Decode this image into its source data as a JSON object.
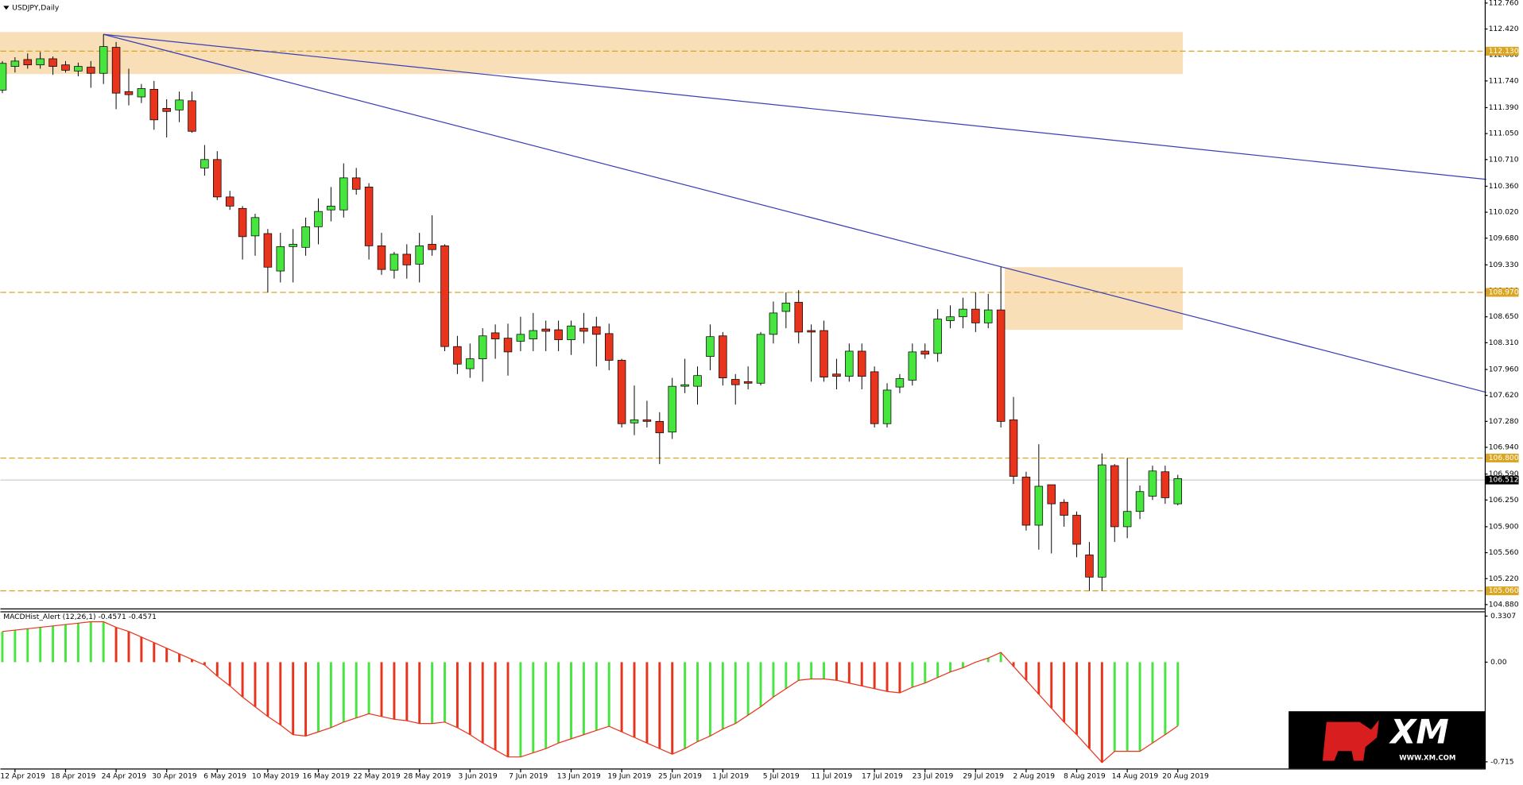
{
  "chart_data": {
    "type": "candlestick",
    "title": "USDJPY,Daily",
    "categories": [
      null,
      "12 Apr 2019",
      null,
      null,
      null,
      "18 Apr 2019",
      null,
      null,
      null,
      "24 Apr 2019",
      null,
      null,
      null,
      "30 Apr 2019",
      null,
      null,
      null,
      "6 May 2019",
      null,
      null,
      null,
      "10 May 2019",
      null,
      null,
      null,
      "16 May 2019",
      null,
      null,
      null,
      "22 May 2019",
      null,
      null,
      null,
      "28 May 2019",
      null,
      null,
      null,
      "3 Jun 2019",
      null,
      null,
      null,
      "7 Jun 2019",
      null,
      null,
      null,
      "13 Jun 2019",
      null,
      null,
      null,
      "19 Jun 2019",
      null,
      null,
      null,
      "25 Jun 2019",
      null,
      null,
      null,
      "1 Jul 2019",
      null,
      null,
      null,
      "5 Jul 2019",
      null,
      null,
      null,
      "11 Jul 2019",
      null,
      null,
      null,
      "17 Jul 2019",
      null,
      null,
      null,
      "23 Jul 2019",
      null,
      null,
      null,
      "29 Jul 2019",
      null,
      null,
      null,
      "2 Aug 2019",
      null,
      null,
      null,
      "8 Aug 2019",
      null,
      null,
      null,
      "14 Aug 2019",
      null,
      null,
      null,
      "20 Aug 2019"
    ],
    "open": [
      111.62,
      111.93,
      112.02,
      111.95,
      112.03,
      111.95,
      111.87,
      111.92,
      111.84,
      112.18,
      111.6,
      111.53,
      111.63,
      111.38,
      111.36,
      111.48,
      110.6,
      110.71,
      110.22,
      110.07,
      109.71,
      109.74,
      109.25,
      109.57,
      109.56,
      109.83,
      110.05,
      110.05,
      110.47,
      110.35,
      109.58,
      109.26,
      109.47,
      109.34,
      109.6,
      109.58,
      108.26,
      107.97,
      108.1,
      108.44,
      108.37,
      108.33,
      108.36,
      108.49,
      108.48,
      108.35,
      108.5,
      108.52,
      108.43,
      108.08,
      107.26,
      107.3,
      107.28,
      107.14,
      107.74,
      107.74,
      108.13,
      108.4,
      107.83,
      107.8,
      107.78,
      108.42,
      108.72,
      108.84,
      108.47,
      108.47,
      107.9,
      107.87,
      108.2,
      107.93,
      107.25,
      107.73,
      107.82,
      108.2,
      108.17,
      108.6,
      108.65,
      108.75,
      108.57,
      108.74,
      107.3,
      106.55,
      105.92,
      106.45,
      106.22,
      106.05,
      105.53,
      105.24,
      106.7,
      105.9,
      106.1,
      106.3,
      106.62,
      106.2
    ],
    "high": [
      112.0,
      112.05,
      112.1,
      112.12,
      112.06,
      112.0,
      111.98,
      112.0,
      112.35,
      112.25,
      111.9,
      111.7,
      111.74,
      111.5,
      111.6,
      111.6,
      110.9,
      110.82,
      110.3,
      110.1,
      110.0,
      109.8,
      109.75,
      109.8,
      109.95,
      110.2,
      110.35,
      110.66,
      110.6,
      110.4,
      109.75,
      109.5,
      109.6,
      109.75,
      109.98,
      109.6,
      108.4,
      108.3,
      108.5,
      108.55,
      108.56,
      108.65,
      108.7,
      108.6,
      108.6,
      108.6,
      108.7,
      108.65,
      108.56,
      108.1,
      107.75,
      107.55,
      107.4,
      107.85,
      108.1,
      108.0,
      108.55,
      108.45,
      107.9,
      108.0,
      108.45,
      108.85,
      108.97,
      109.0,
      108.55,
      108.6,
      108.1,
      108.3,
      108.3,
      108.0,
      107.78,
      107.9,
      108.3,
      108.3,
      108.75,
      108.8,
      108.9,
      108.97,
      108.95,
      109.3,
      107.6,
      106.62,
      106.98,
      106.45,
      106.26,
      106.1,
      105.7,
      106.86,
      106.72,
      106.8,
      106.44,
      106.7,
      106.7,
      106.58
    ],
    "low": [
      111.58,
      111.85,
      111.9,
      111.9,
      111.82,
      111.85,
      111.8,
      111.65,
      111.7,
      111.37,
      111.42,
      111.45,
      111.1,
      111.0,
      111.2,
      111.06,
      110.5,
      110.18,
      110.05,
      109.4,
      109.45,
      108.97,
      109.1,
      109.1,
      109.45,
      109.6,
      109.9,
      109.95,
      110.25,
      109.4,
      109.2,
      109.15,
      109.15,
      109.1,
      109.45,
      108.2,
      107.9,
      107.85,
      107.8,
      108.1,
      107.88,
      108.2,
      108.2,
      108.2,
      108.2,
      108.15,
      108.3,
      108.0,
      107.95,
      107.2,
      107.1,
      107.2,
      106.72,
      107.05,
      107.65,
      107.5,
      107.95,
      107.75,
      107.5,
      107.7,
      107.75,
      108.3,
      108.5,
      108.3,
      107.8,
      107.8,
      107.7,
      107.8,
      107.7,
      107.2,
      107.2,
      107.65,
      107.75,
      108.1,
      108.06,
      108.5,
      108.5,
      108.45,
      108.5,
      107.2,
      106.46,
      105.85,
      105.6,
      105.55,
      105.9,
      105.5,
      105.06,
      105.06,
      105.7,
      105.75,
      106.0,
      106.25,
      106.2,
      106.18
    ],
    "close": [
      111.97,
      112.0,
      111.95,
      112.03,
      111.93,
      111.88,
      111.93,
      111.84,
      112.19,
      111.58,
      111.56,
      111.64,
      111.23,
      111.34,
      111.49,
      111.08,
      110.71,
      110.22,
      110.1,
      109.7,
      109.95,
      109.3,
      109.57,
      109.6,
      109.83,
      110.03,
      110.1,
      110.47,
      110.32,
      109.58,
      109.27,
      109.47,
      109.33,
      109.58,
      109.53,
      108.26,
      108.03,
      108.1,
      108.4,
      108.36,
      108.19,
      108.42,
      108.47,
      108.46,
      108.35,
      108.53,
      108.46,
      108.42,
      108.08,
      107.25,
      107.3,
      107.28,
      107.13,
      107.74,
      107.76,
      107.88,
      108.39,
      107.85,
      107.76,
      107.78,
      108.42,
      108.7,
      108.83,
      108.45,
      108.45,
      107.86,
      107.87,
      108.2,
      107.87,
      107.25,
      107.69,
      107.84,
      108.19,
      108.16,
      108.62,
      108.65,
      108.75,
      108.57,
      108.74,
      107.28,
      106.56,
      105.92,
      106.43,
      106.2,
      106.05,
      105.67,
      105.24,
      106.71,
      105.9,
      106.1,
      106.36,
      106.63,
      106.28,
      106.53
    ],
    "up_color": "#47e63f",
    "down_color": "#e8341c",
    "ylim": [
      104.83,
      112.8
    ],
    "yticks": [
      {
        "value": 112.76,
        "label": "112.760"
      },
      {
        "value": 112.42,
        "label": "112.420"
      },
      {
        "value": 112.08,
        "label": "112.080"
      },
      {
        "value": 111.74,
        "label": "111.740"
      },
      {
        "value": 111.39,
        "label": "111.390"
      },
      {
        "value": 111.05,
        "label": "111.050"
      },
      {
        "value": 110.71,
        "label": "110.710"
      },
      {
        "value": 110.36,
        "label": "110.360"
      },
      {
        "value": 110.02,
        "label": "110.020"
      },
      {
        "value": 109.68,
        "label": "109.680"
      },
      {
        "value": 109.33,
        "label": "109.330"
      },
      {
        "value": 108.99,
        "label": "108.990"
      },
      {
        "value": 108.65,
        "label": "108.650"
      },
      {
        "value": 108.31,
        "label": "108.310"
      },
      {
        "value": 107.96,
        "label": "107.960"
      },
      {
        "value": 107.62,
        "label": "107.620"
      },
      {
        "value": 107.28,
        "label": "107.280"
      },
      {
        "value": 106.94,
        "label": "106.940"
      },
      {
        "value": 106.59,
        "label": "106.590"
      },
      {
        "value": 106.25,
        "label": "106.250"
      },
      {
        "value": 105.9,
        "label": "105.900"
      },
      {
        "value": 105.56,
        "label": "105.560"
      },
      {
        "value": 105.22,
        "label": "105.220"
      },
      {
        "value": 104.88,
        "label": "104.880"
      }
    ],
    "levels": [
      {
        "value": 112.13,
        "label": "112.130"
      },
      {
        "value": 108.97,
        "label": "108.970"
      },
      {
        "value": 106.8,
        "label": "106.800"
      },
      {
        "value": 105.06,
        "label": "105.060"
      }
    ],
    "level_color": "#daa520",
    "current_price": {
      "value": 106.512,
      "label": "106.512"
    },
    "trendlines": [
      {
        "x": [
          8,
          117.4
        ],
        "y": [
          112.35,
          110.45
        ]
      },
      {
        "x": [
          8,
          117.4
        ],
        "y": [
          112.35,
          107.66
        ]
      }
    ],
    "trendline_color": "#3a3fb5",
    "zones": [
      {
        "x": [
          -0.2,
          93.4
        ],
        "y": [
          112.38,
          111.83
        ]
      },
      {
        "x": [
          79.3,
          93.4
        ],
        "y": [
          109.3,
          108.48
        ]
      }
    ],
    "zone_color": "#f9dfb8",
    "indicator": {
      "type": "bar",
      "title": "MACDHist_Alert (12,26,1) -0.4571 -0.4571",
      "values": [
        0.22,
        0.23,
        0.24,
        0.25,
        0.26,
        0.27,
        0.28,
        0.29,
        0.29,
        0.25,
        0.22,
        0.18,
        0.14,
        0.1,
        0.06,
        0.02,
        -0.02,
        -0.1,
        -0.17,
        -0.25,
        -0.32,
        -0.39,
        -0.45,
        -0.52,
        -0.53,
        -0.5,
        -0.47,
        -0.43,
        -0.4,
        -0.37,
        -0.39,
        -0.41,
        -0.42,
        -0.44,
        -0.44,
        -0.43,
        -0.47,
        -0.52,
        -0.58,
        -0.63,
        -0.68,
        -0.68,
        -0.65,
        -0.62,
        -0.58,
        -0.55,
        -0.52,
        -0.49,
        -0.46,
        -0.5,
        -0.54,
        -0.58,
        -0.62,
        -0.66,
        -0.62,
        -0.57,
        -0.53,
        -0.48,
        -0.44,
        -0.38,
        -0.32,
        -0.25,
        -0.19,
        -0.13,
        -0.12,
        -0.12,
        -0.13,
        -0.15,
        -0.17,
        -0.19,
        -0.21,
        -0.22,
        -0.18,
        -0.15,
        -0.11,
        -0.07,
        -0.04,
        0.0,
        0.03,
        0.07,
        -0.03,
        -0.13,
        -0.23,
        -0.33,
        -0.43,
        -0.52,
        -0.62,
        -0.72,
        -0.64,
        -0.64,
        -0.64,
        -0.58,
        -0.52,
        -0.4571
      ],
      "ylim": [
        -0.763,
        0.358
      ],
      "yticks": [
        0.3307,
        {
          "value": 0,
          "label": "0.00"
        },
        -0.715
      ],
      "up_color": "#47e63f",
      "down_color": "#e8341c",
      "line_color": "#e8341c"
    },
    "logo": {
      "text": "XM",
      "url": "WWW.XM.COM"
    }
  }
}
